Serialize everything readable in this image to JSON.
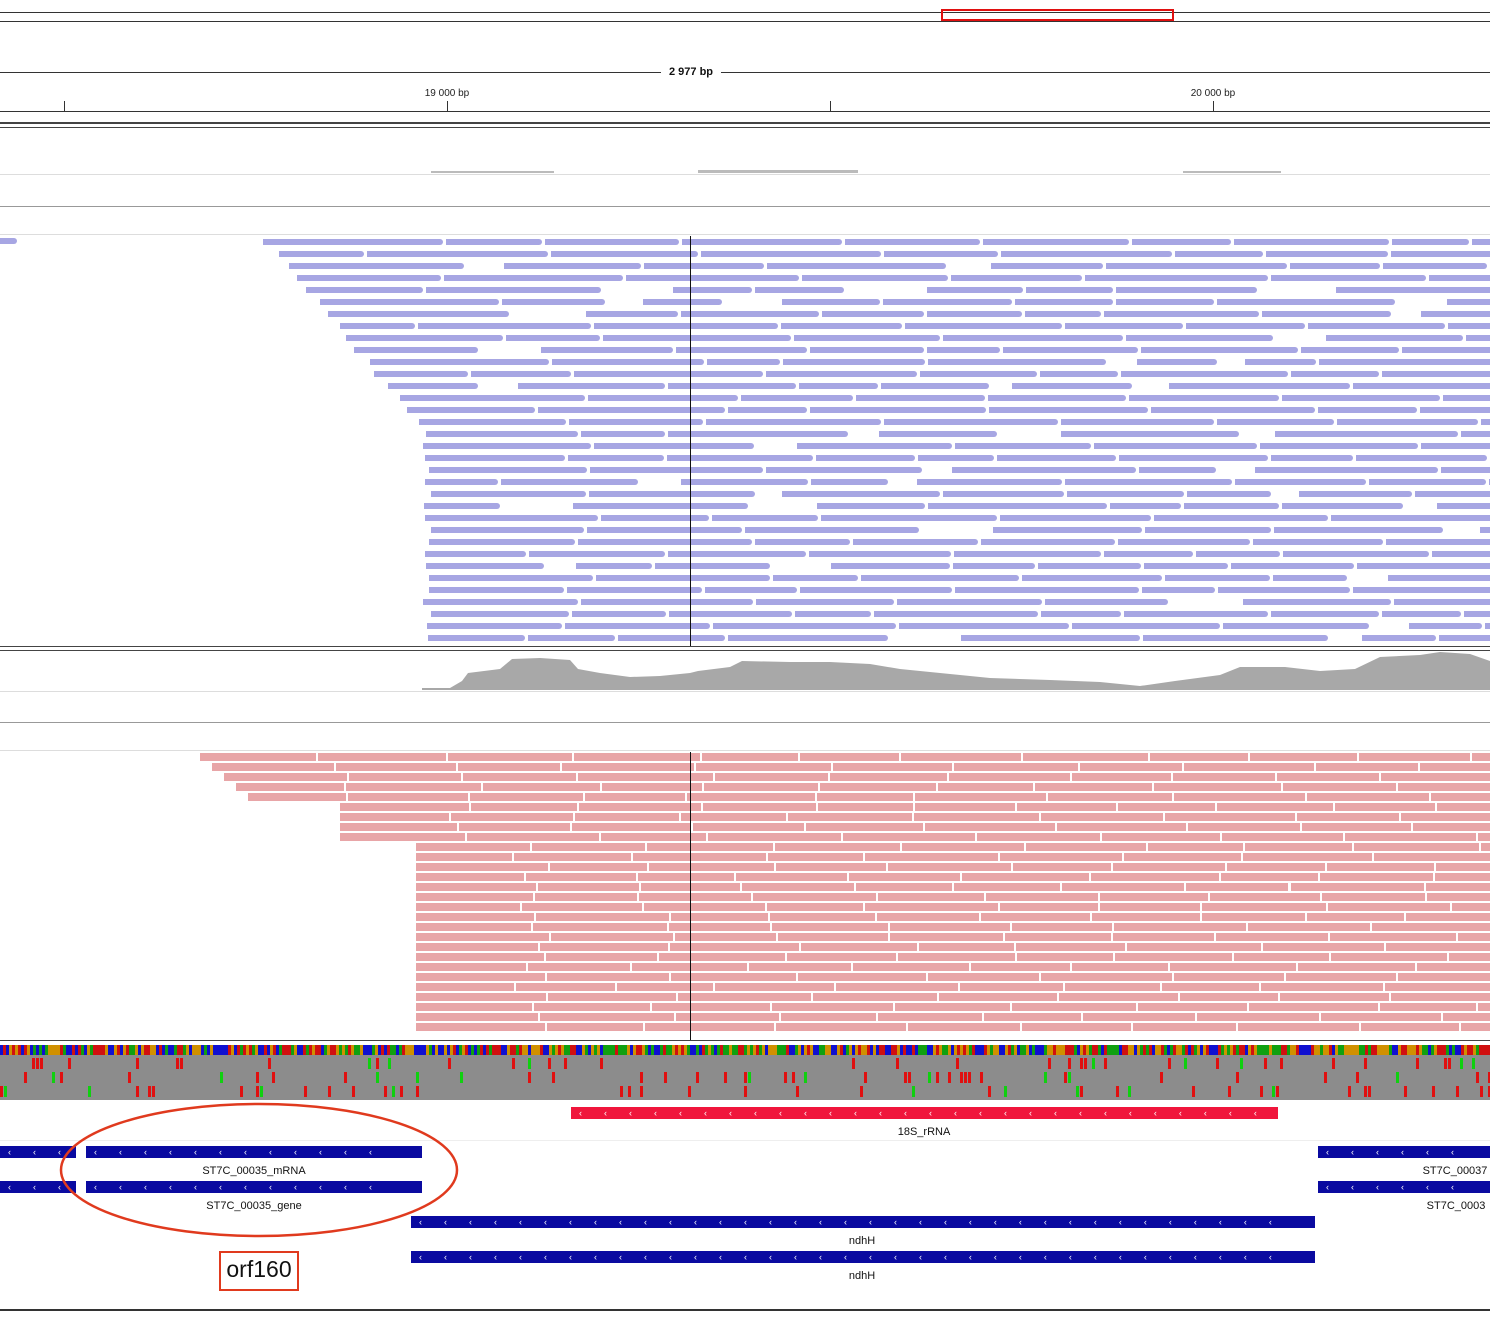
{
  "ruler": {
    "span_label": "2 977 bp",
    "tick_19000": "19 000 bp",
    "tick_20000": "20 000 bp"
  },
  "colors": {
    "forward_read": "#a7a6e3",
    "reverse_read": "#e8a5a7",
    "coverage": "#a8a8a8",
    "gene_feature": "#0a0aa0",
    "rrna_feature": "#f0163c",
    "annotation": "#e03a1e"
  },
  "features": {
    "rrna_label": "18S_rRNA",
    "mrna_left_label": "ST7C_00035_mRNA",
    "gene_left_label": "ST7C_00035_gene",
    "mrna_right_label": "ST7C_00037",
    "gene_right_label": "ST7C_0003",
    "ndhh_label_1": "ndhH",
    "ndhh_label_2": "ndhH"
  },
  "annotation": {
    "label": "orf160"
  }
}
